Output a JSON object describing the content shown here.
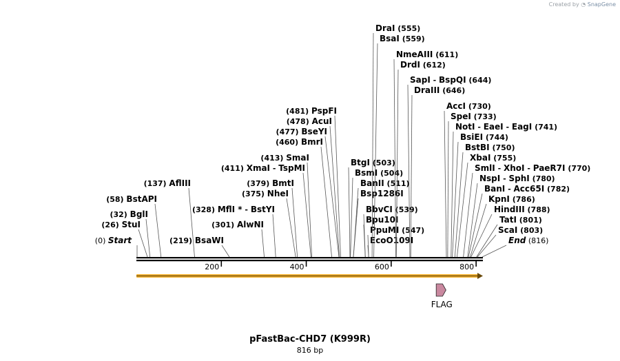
{
  "credit": {
    "created_by": "Created by",
    "brand": "SnapGene"
  },
  "construct": {
    "name": "pFastBac-CHD7 (K999R)",
    "length_label": "816 bp",
    "length": 816
  },
  "colors": {
    "orf": "#f2b233",
    "feature": "#c9889f",
    "line": "#000000"
  },
  "axis_ticks": [
    {
      "value": 200,
      "label": "200"
    },
    {
      "value": 400,
      "label": "400"
    },
    {
      "value": 600,
      "label": "600"
    },
    {
      "value": 800,
      "label": "800"
    }
  ],
  "markers": [
    {
      "label": "Start",
      "pos": 0,
      "pos_label": "(0)"
    },
    {
      "label": "End",
      "pos": 816,
      "pos_label": "(816)"
    }
  ],
  "sites_left": [
    {
      "names": [
        "StuI"
      ],
      "pos": 26,
      "pos_label": "(26)"
    },
    {
      "names": [
        "BglI"
      ],
      "pos": 32,
      "pos_label": "(32)"
    },
    {
      "names": [
        "BstAPI"
      ],
      "pos": 58,
      "pos_label": "(58)"
    },
    {
      "names": [
        "AflIII"
      ],
      "pos": 137,
      "pos_label": "(137)"
    },
    {
      "names": [
        "BsaWI"
      ],
      "pos": 219,
      "pos_label": "(219)"
    },
    {
      "names": [
        "AlwNI"
      ],
      "pos": 301,
      "pos_label": "(301)"
    },
    {
      "names": [
        "MflI *",
        "BstYI"
      ],
      "pos": 328,
      "pos_label": "(328)"
    },
    {
      "names": [
        "NheI"
      ],
      "pos": 375,
      "pos_label": "(375)"
    },
    {
      "names": [
        "BmtI"
      ],
      "pos": 379,
      "pos_label": "(379)"
    },
    {
      "names": [
        "XmaI",
        "TspMI"
      ],
      "pos": 411,
      "pos_label": "(411)"
    },
    {
      "names": [
        "SmaI"
      ],
      "pos": 413,
      "pos_label": "(413)"
    },
    {
      "names": [
        "BmrI"
      ],
      "pos": 460,
      "pos_label": "(460)"
    },
    {
      "names": [
        "BseYI"
      ],
      "pos": 477,
      "pos_label": "(477)"
    },
    {
      "names": [
        "AcuI"
      ],
      "pos": 478,
      "pos_label": "(478)"
    },
    {
      "names": [
        "PspFI"
      ],
      "pos": 481,
      "pos_label": "(481)"
    }
  ],
  "sites_right": [
    {
      "names": [
        "EcoO109I"
      ],
      "pos": 547,
      "pos_label": ""
    },
    {
      "names": [
        "PpuMI"
      ],
      "pos": 547,
      "pos_label": "(547)"
    },
    {
      "names": [
        "Bpu10I"
      ],
      "pos": 539,
      "pos_label": ""
    },
    {
      "names": [
        "BbvCI"
      ],
      "pos": 539,
      "pos_label": "(539)"
    },
    {
      "names": [
        "Bsp1286I"
      ],
      "pos": 511,
      "pos_label": ""
    },
    {
      "names": [
        "BanII"
      ],
      "pos": 511,
      "pos_label": "(511)"
    },
    {
      "names": [
        "BsmI"
      ],
      "pos": 504,
      "pos_label": "(504)"
    },
    {
      "names": [
        "BtgI"
      ],
      "pos": 503,
      "pos_label": "(503)"
    },
    {
      "names": [
        "DraIII"
      ],
      "pos": 646,
      "pos_label": "(646)"
    },
    {
      "names": [
        "SapI",
        "BspQI"
      ],
      "pos": 644,
      "pos_label": "(644)"
    },
    {
      "names": [
        "DrdI"
      ],
      "pos": 612,
      "pos_label": "(612)"
    },
    {
      "names": [
        "NmeAIII"
      ],
      "pos": 611,
      "pos_label": "(611)"
    },
    {
      "names": [
        "BsaI"
      ],
      "pos": 559,
      "pos_label": "(559)"
    },
    {
      "names": [
        "DraI"
      ],
      "pos": 555,
      "pos_label": "(555)"
    },
    {
      "names": [
        "ScaI"
      ],
      "pos": 803,
      "pos_label": "(803)"
    },
    {
      "names": [
        "TatI"
      ],
      "pos": 801,
      "pos_label": "(801)"
    },
    {
      "names": [
        "HindIII"
      ],
      "pos": 788,
      "pos_label": "(788)"
    },
    {
      "names": [
        "KpnI"
      ],
      "pos": 786,
      "pos_label": "(786)"
    },
    {
      "names": [
        "BanI",
        "Acc65I"
      ],
      "pos": 782,
      "pos_label": "(782)"
    },
    {
      "names": [
        "NspI",
        "SphI"
      ],
      "pos": 780,
      "pos_label": "(780)"
    },
    {
      "names": [
        "SmlI",
        "XhoI",
        "PaeR7I"
      ],
      "pos": 770,
      "pos_label": "(770)"
    },
    {
      "names": [
        "XbaI"
      ],
      "pos": 755,
      "pos_label": "(755)"
    },
    {
      "names": [
        "BstBI"
      ],
      "pos": 750,
      "pos_label": "(750)"
    },
    {
      "names": [
        "BsiEI"
      ],
      "pos": 744,
      "pos_label": "(744)"
    },
    {
      "names": [
        "NotI",
        "EaeI",
        "EagI"
      ],
      "pos": 741,
      "pos_label": "(741)"
    },
    {
      "names": [
        "SpeI"
      ],
      "pos": 733,
      "pos_label": "(733)"
    },
    {
      "names": [
        "AccI"
      ],
      "pos": 730,
      "pos_label": "(730)"
    }
  ],
  "features": [
    {
      "name": "FLAG",
      "type": "arrow",
      "start": 706,
      "end": 729
    },
    {
      "name": "",
      "type": "orf",
      "start": 1,
      "end": 816
    }
  ]
}
